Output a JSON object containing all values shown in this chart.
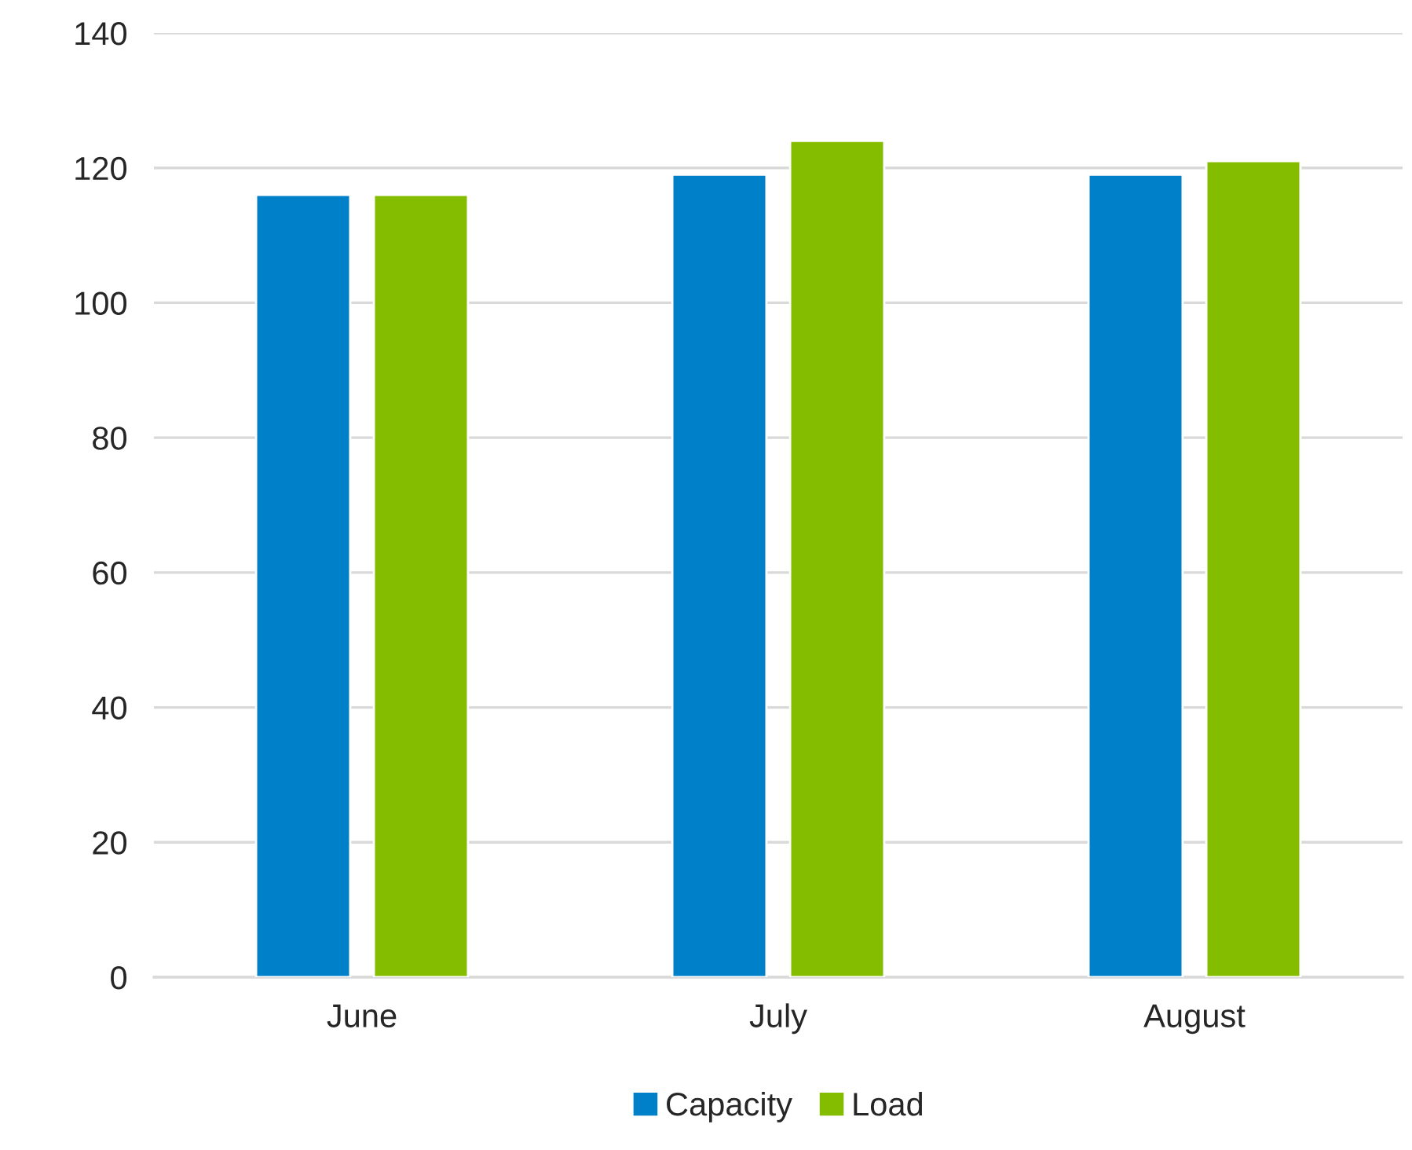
{
  "chart_data": {
    "type": "bar",
    "categories": [
      "June",
      "July",
      "August"
    ],
    "series": [
      {
        "name": "Capacity",
        "color": "#0080c8",
        "values": [
          116,
          119,
          119
        ]
      },
      {
        "name": "Load",
        "color": "#84bc00",
        "values": [
          116,
          124,
          121
        ]
      }
    ],
    "ylim": [
      0,
      140
    ],
    "yticks": [
      0,
      20,
      40,
      60,
      80,
      100,
      120,
      140
    ],
    "grid": "y",
    "legend": "bottom"
  }
}
